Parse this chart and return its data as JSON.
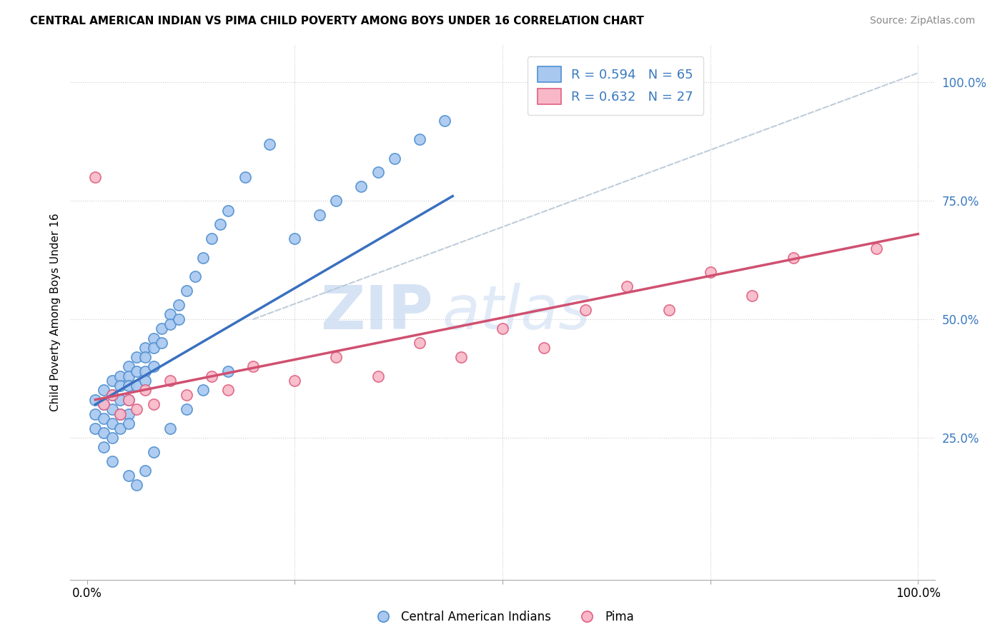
{
  "title": "CENTRAL AMERICAN INDIAN VS PIMA CHILD POVERTY AMONG BOYS UNDER 16 CORRELATION CHART",
  "source": "Source: ZipAtlas.com",
  "ylabel": "Child Poverty Among Boys Under 16",
  "xlim": [
    -0.02,
    1.02
  ],
  "ylim": [
    -0.05,
    1.08
  ],
  "R_blue": 0.594,
  "N_blue": 65,
  "R_pink": 0.632,
  "N_pink": 27,
  "color_blue_fill": "#a8c8f0",
  "color_blue_edge": "#5090d0",
  "color_pink_fill": "#f8b8c8",
  "color_pink_edge": "#e06080",
  "color_blue_line": "#3a70c0",
  "color_pink_line": "#d05070",
  "color_ref_line": "#b8c8d8",
  "legend_label_blue": "Central American Indians",
  "legend_label_pink": "Pima",
  "blue_x": [
    0.01,
    0.01,
    0.01,
    0.02,
    0.02,
    0.02,
    0.02,
    0.03,
    0.03,
    0.03,
    0.03,
    0.03,
    0.04,
    0.04,
    0.04,
    0.04,
    0.04,
    0.05,
    0.05,
    0.05,
    0.05,
    0.05,
    0.05,
    0.06,
    0.06,
    0.06,
    0.07,
    0.07,
    0.07,
    0.07,
    0.08,
    0.08,
    0.08,
    0.09,
    0.09,
    0.1,
    0.1,
    0.11,
    0.11,
    0.12,
    0.13,
    0.14,
    0.15,
    0.16,
    0.17,
    0.19,
    0.22,
    0.25,
    0.28,
    0.3,
    0.33,
    0.35,
    0.37,
    0.4,
    0.43,
    0.02,
    0.03,
    0.05,
    0.06,
    0.07,
    0.08,
    0.1,
    0.12,
    0.14,
    0.17
  ],
  "blue_y": [
    0.33,
    0.3,
    0.27,
    0.35,
    0.32,
    0.29,
    0.26,
    0.37,
    0.34,
    0.31,
    0.28,
    0.25,
    0.38,
    0.36,
    0.33,
    0.3,
    0.27,
    0.4,
    0.38,
    0.36,
    0.33,
    0.3,
    0.28,
    0.42,
    0.39,
    0.36,
    0.44,
    0.42,
    0.39,
    0.37,
    0.46,
    0.44,
    0.4,
    0.48,
    0.45,
    0.51,
    0.49,
    0.53,
    0.5,
    0.56,
    0.59,
    0.63,
    0.67,
    0.7,
    0.73,
    0.8,
    0.87,
    0.67,
    0.72,
    0.75,
    0.78,
    0.81,
    0.84,
    0.88,
    0.92,
    0.23,
    0.2,
    0.17,
    0.15,
    0.18,
    0.22,
    0.27,
    0.31,
    0.35,
    0.39
  ],
  "pink_x": [
    0.01,
    0.02,
    0.03,
    0.04,
    0.05,
    0.06,
    0.07,
    0.08,
    0.1,
    0.12,
    0.15,
    0.17,
    0.2,
    0.25,
    0.3,
    0.35,
    0.4,
    0.45,
    0.5,
    0.55,
    0.6,
    0.65,
    0.7,
    0.75,
    0.8,
    0.85,
    0.95
  ],
  "pink_y": [
    0.8,
    0.32,
    0.34,
    0.3,
    0.33,
    0.31,
    0.35,
    0.32,
    0.37,
    0.34,
    0.38,
    0.35,
    0.4,
    0.37,
    0.42,
    0.38,
    0.45,
    0.42,
    0.48,
    0.44,
    0.52,
    0.57,
    0.52,
    0.6,
    0.55,
    0.63,
    0.65
  ],
  "blue_line_x0": 0.01,
  "blue_line_x1": 0.44,
  "blue_line_y0": 0.32,
  "blue_line_y1": 0.76,
  "pink_line_x0": 0.01,
  "pink_line_x1": 1.0,
  "pink_line_y0": 0.33,
  "pink_line_y1": 0.68,
  "ref_line_x0": 0.2,
  "ref_line_x1": 1.0,
  "ref_line_y0": 0.5,
  "ref_line_y1": 1.02
}
